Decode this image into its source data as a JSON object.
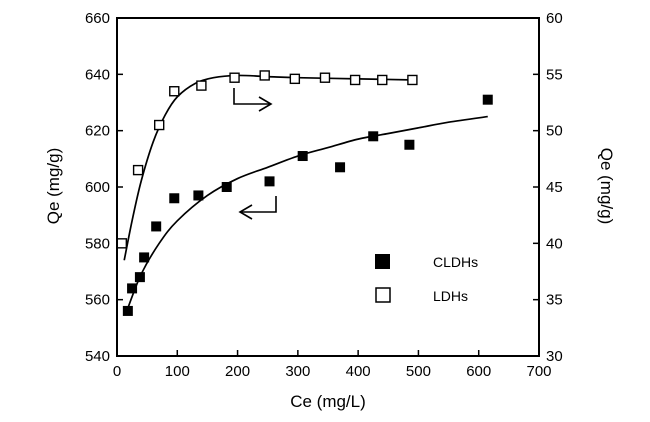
{
  "chart_data": {
    "type": "scatter",
    "xlabel": "Ce (mg/L)",
    "ylabel_left": "Qe (mg/g)",
    "ylabel_right": "Qe (mg/g)",
    "xlim": [
      0,
      700
    ],
    "ylim_left": [
      540,
      660
    ],
    "ylim_right": [
      30,
      60
    ],
    "x_ticks": [
      0,
      100,
      200,
      300,
      400,
      500,
      600,
      700
    ],
    "y_left_ticks": [
      540,
      560,
      580,
      600,
      620,
      640,
      660
    ],
    "y_right_ticks": [
      30,
      35,
      40,
      45,
      50,
      55,
      60
    ],
    "grid": false,
    "legend_position": "center-right",
    "series": [
      {
        "name": "CLDHs",
        "axis": "left",
        "marker": "filled-square",
        "color": "#000000",
        "points": [
          [
            18,
            556
          ],
          [
            25,
            564
          ],
          [
            38,
            568
          ],
          [
            45,
            575
          ],
          [
            65,
            586
          ],
          [
            95,
            596
          ],
          [
            135,
            597
          ],
          [
            182,
            600
          ],
          [
            253,
            602
          ],
          [
            308,
            611
          ],
          [
            370,
            607
          ],
          [
            425,
            618
          ],
          [
            485,
            615
          ],
          [
            615,
            631
          ]
        ],
        "fit": [
          [
            18,
            557
          ],
          [
            40,
            569
          ],
          [
            70,
            580
          ],
          [
            100,
            588
          ],
          [
            150,
            597
          ],
          [
            200,
            603
          ],
          [
            250,
            607
          ],
          [
            300,
            611
          ],
          [
            350,
            614
          ],
          [
            400,
            617
          ],
          [
            450,
            619
          ],
          [
            500,
            621
          ],
          [
            550,
            623
          ],
          [
            615,
            625
          ]
        ]
      },
      {
        "name": "LDHs",
        "axis": "right",
        "marker": "open-square",
        "color": "#000000",
        "points": [
          [
            8,
            40
          ],
          [
            35,
            46.5
          ],
          [
            70,
            50.5
          ],
          [
            95,
            53.5
          ],
          [
            140,
            54
          ],
          [
            195,
            54.7
          ],
          [
            245,
            54.9
          ],
          [
            295,
            54.6
          ],
          [
            345,
            54.7
          ],
          [
            395,
            54.5
          ],
          [
            440,
            54.5
          ],
          [
            490,
            54.5
          ]
        ],
        "fit": [
          [
            12,
            38.5
          ],
          [
            25,
            42
          ],
          [
            40,
            45.5
          ],
          [
            60,
            49
          ],
          [
            80,
            51.4
          ],
          [
            100,
            53
          ],
          [
            130,
            54.2
          ],
          [
            160,
            54.7
          ],
          [
            200,
            54.9
          ],
          [
            250,
            54.8
          ],
          [
            300,
            54.7
          ],
          [
            400,
            54.6
          ],
          [
            495,
            54.5
          ]
        ]
      }
    ],
    "annotations": [
      {
        "type": "arrow",
        "direction": "right",
        "points_to_axis": "right",
        "near": [
          220,
          633
        ]
      },
      {
        "type": "arrow",
        "direction": "left",
        "points_to_axis": "left",
        "near": [
          250,
          595
        ]
      }
    ]
  }
}
